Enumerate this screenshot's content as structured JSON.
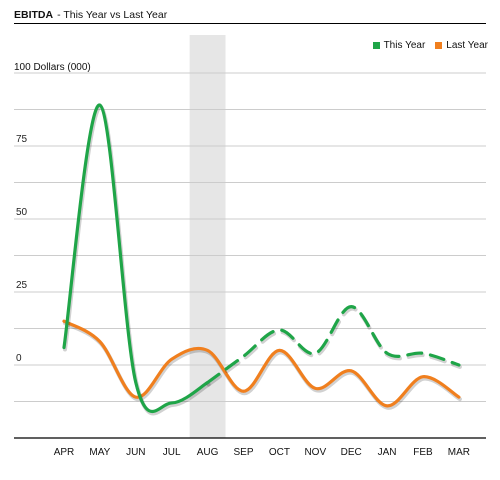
{
  "title": "EBITDA",
  "subtitle": "- This Year vs Last Year",
  "colors": {
    "this_year": "#1fa548",
    "last_year": "#f07f1e",
    "grid": "#cccccc",
    "highlight": "#e6e6e6"
  },
  "chart_data": {
    "type": "line",
    "title": "EBITDA",
    "subtitle": "- This Year vs Last Year",
    "ylabel": "100 Dollars (000)",
    "xlabel": "",
    "categories": [
      "APR",
      "MAY",
      "JUN",
      "JUL",
      "AUG",
      "SEP",
      "OCT",
      "NOV",
      "DEC",
      "JAN",
      "FEB",
      "MAR"
    ],
    "y_ticks": [
      0,
      25,
      50,
      75
    ],
    "ylim": [
      -25,
      100
    ],
    "grid": true,
    "legend": "top-right",
    "highlight_category": "AUG",
    "series": [
      {
        "name": "This Year",
        "color": "#1fa548",
        "values": [
          6,
          89,
          -6,
          -13,
          -6,
          3,
          12,
          4,
          20,
          4,
          4,
          0
        ],
        "solid_through_index": 4,
        "dashed_from_index": 4
      },
      {
        "name": "Last Year",
        "color": "#f07f1e",
        "values": [
          15,
          8,
          -11,
          2,
          5,
          -9,
          5,
          -8,
          -2,
          -14,
          -4,
          -11
        ]
      }
    ]
  }
}
